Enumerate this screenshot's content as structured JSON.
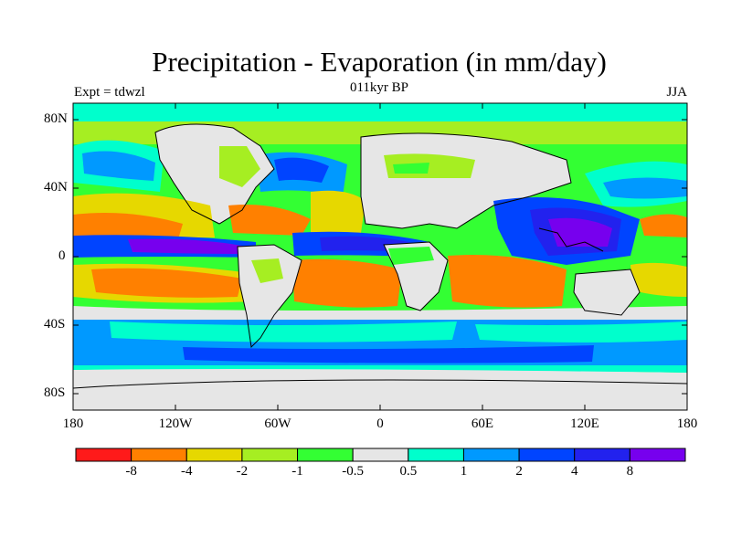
{
  "title": "Precipitation - Evaporation (in mm/day)",
  "subtitle": "011kyr BP",
  "left_label": "Expt = tdwzl",
  "right_label": "JJA",
  "lat_labels": [
    "80N",
    "40N",
    "0",
    "40S",
    "80S"
  ],
  "lon_labels": [
    "180",
    "120W",
    "60W",
    "0",
    "60E",
    "120E",
    "180"
  ],
  "colorbar": {
    "colors": [
      "#ff1a1a",
      "#ff8000",
      "#e6d800",
      "#a6ee22",
      "#33ff33",
      "#e6e6e6",
      "#00ffcc",
      "#0099ff",
      "#0044ff",
      "#2222ee",
      "#7700ee"
    ],
    "labels": [
      "-8",
      "-4",
      "-2",
      "-1",
      "-0.5",
      "0.5",
      "1",
      "2",
      "4",
      "8"
    ]
  },
  "map_colors": {
    "land": "#e6e6e6",
    "coast": "#000000"
  }
}
